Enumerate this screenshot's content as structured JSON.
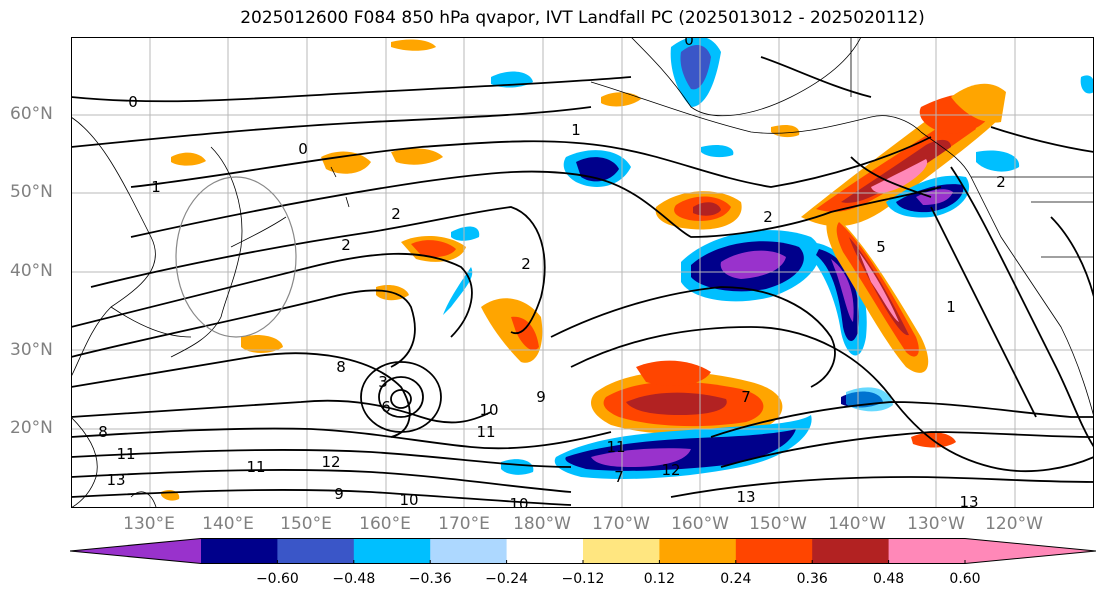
{
  "title": "2025012600 F084 850 hPa qvapor, IVT Landfall PC (2025013012 - 2025020112)",
  "map": {
    "projection": "PlateCarree",
    "extent_lon": [
      120,
      250
    ],
    "extent_lat": [
      10,
      70
    ],
    "lat_labels": [
      "60°N",
      "50°N",
      "40°N",
      "30°N",
      "20°N"
    ],
    "lon_labels": [
      "130°E",
      "140°E",
      "150°E",
      "160°E",
      "170°E",
      "180°W",
      "170°W",
      "160°W",
      "150°W",
      "140°W",
      "130°W",
      "120°W"
    ],
    "gridlines": true,
    "contour_color": "#000000",
    "contour_labels": [
      "0",
      "0",
      "0",
      "1",
      "1",
      "1",
      "2",
      "2",
      "2",
      "2",
      "2",
      "3",
      "5",
      "6",
      "7",
      "7",
      "8",
      "8",
      "9",
      "9",
      "10",
      "10",
      "10",
      "11",
      "11",
      "11",
      "11",
      "12",
      "12",
      "13",
      "13",
      "13"
    ]
  },
  "colorbar": {
    "ticks": [
      "−0.60",
      "−0.48",
      "−0.36",
      "−0.24",
      "−0.12",
      "0.12",
      "0.24",
      "0.36",
      "0.48",
      "0.60"
    ],
    "colors": [
      "#9932cc",
      "#00008b",
      "#3a56c8",
      "#00bfff",
      "#add8ff",
      "#ffffff",
      "#ffe680",
      "#ffa500",
      "#ff4500",
      "#b22222",
      "#ff88b8",
      "#ff88b8"
    ],
    "extend": "both"
  }
}
